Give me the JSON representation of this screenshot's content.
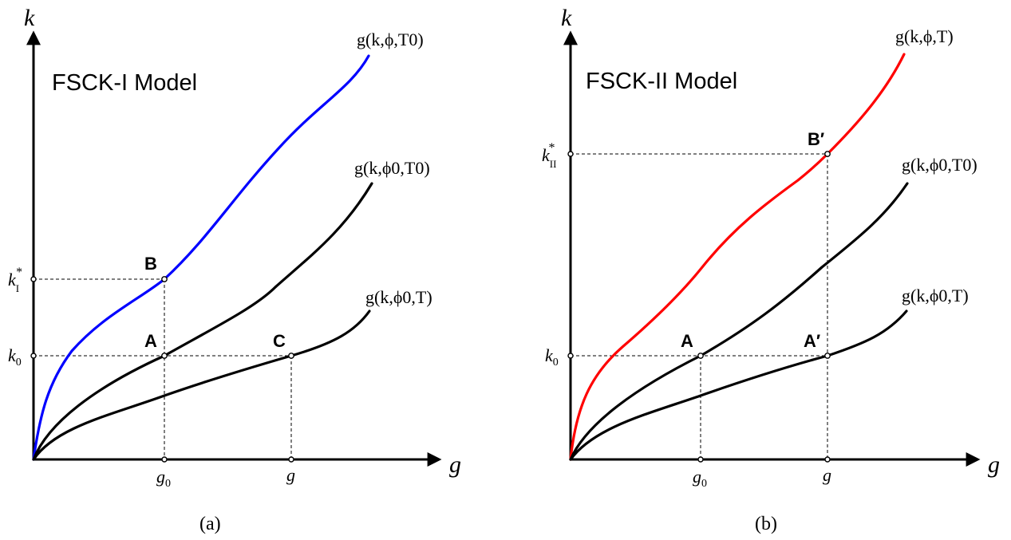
{
  "panels": [
    {
      "title": "FSCK-I Model",
      "caption": "(a)",
      "x_axis": "g",
      "y_axis": "k",
      "curves": [
        {
          "label": "g(k,ϕ,T0)",
          "color": "#0000ff"
        },
        {
          "label": "g(k,ϕ0,T0)",
          "color": "#000000"
        },
        {
          "label": "g(k,ϕ0,T)",
          "color": "#000000"
        }
      ],
      "points": [
        "B",
        "A",
        "C"
      ],
      "y_ticks": [
        "k*I",
        "k0"
      ],
      "x_ticks": [
        "g0",
        "g"
      ]
    },
    {
      "title": "FSCK-II Model",
      "caption": "(b)",
      "x_axis": "g",
      "y_axis": "k",
      "curves": [
        {
          "label": "g(k,ϕ,T)",
          "color": "#ff0000"
        },
        {
          "label": "g(k,ϕ0,T0)",
          "color": "#000000"
        },
        {
          "label": "g(k,ϕ0,T)",
          "color": "#000000"
        }
      ],
      "points": [
        "B′",
        "A",
        "A′"
      ],
      "y_ticks": [
        "k*II",
        "k0"
      ],
      "x_ticks": [
        "g0",
        "g"
      ]
    }
  ]
}
